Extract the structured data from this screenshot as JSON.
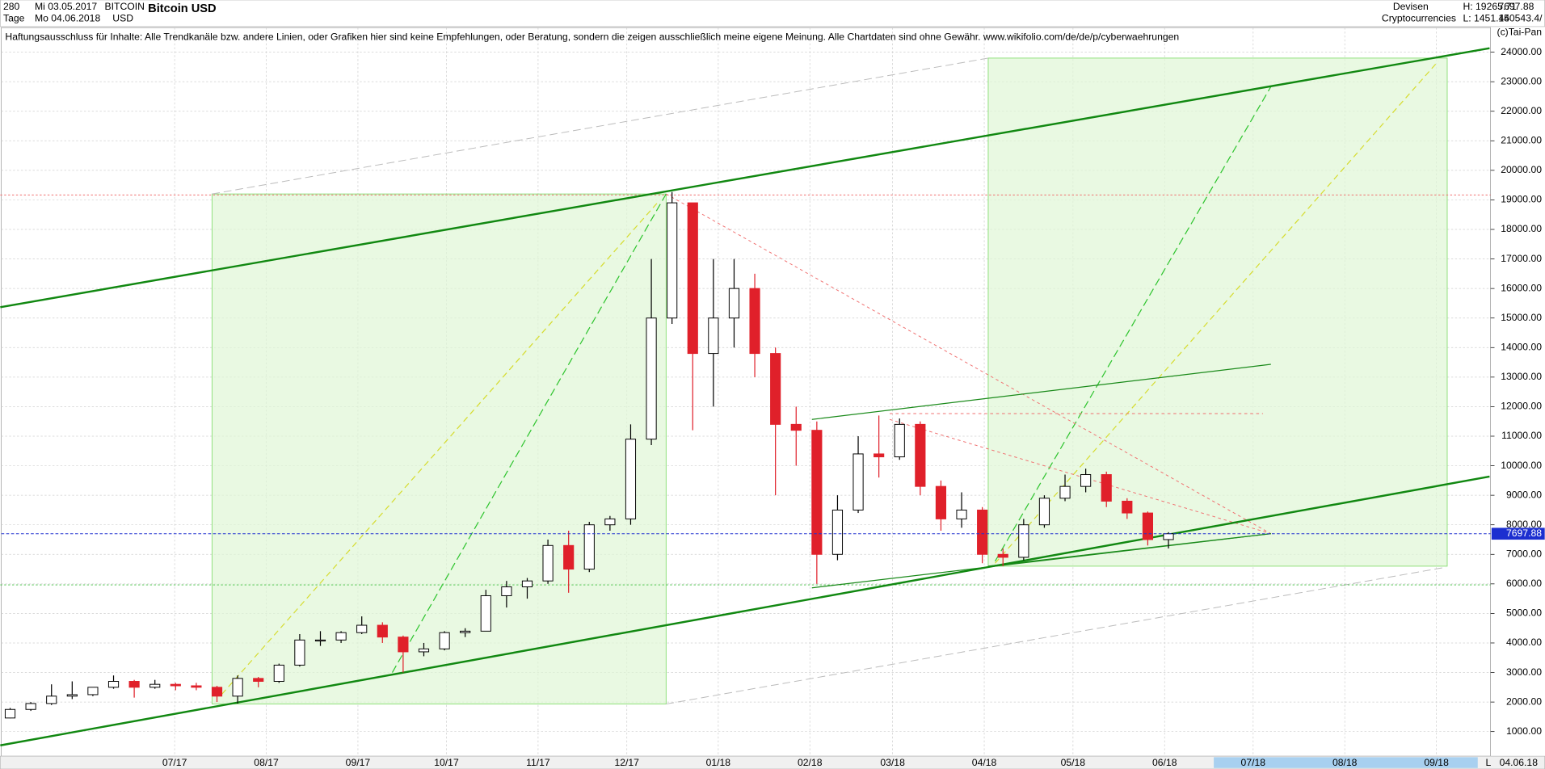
{
  "header": {
    "period": "280",
    "start": "Mi 03.05.2017",
    "unit": "Tage",
    "end": "Mo 04.06.2018",
    "symbol": "BITCOIN",
    "currency": "USD",
    "name": "Bitcoin USD",
    "market": "Devisen",
    "group": "Cryptocurrencies",
    "high": "H: 19265.71",
    "low": "L: 1451.44",
    "last": "7697.88",
    "volume": "150543.4/",
    "disclaimer": "Haftungsausschluss für Inhalte: Alle Trendkanäle bzw. andere Linien, oder Grafiken hier sind keine Empfehlungen, oder Beratung, sondern die zeigen ausschließlich meine eigene Meinung. Alle Chartdaten sind ohne Gewähr.  www.wikifolio.com/de/de/p/cyberwaehrungen",
    "copyright": "(c)Tai-Pan",
    "footer_mode": "L",
    "footer_date": "04.06.18"
  },
  "chart_data": {
    "type": "candlestick",
    "title": "Bitcoin USD",
    "categories": [
      null,
      null,
      null,
      null,
      null,
      null,
      null,
      null,
      null,
      null,
      null,
      null,
      null,
      null,
      null,
      null,
      null,
      null,
      null,
      null,
      null,
      null,
      null,
      null,
      null,
      null,
      null,
      null,
      null,
      null,
      null,
      null,
      null,
      null,
      null,
      null,
      null,
      null,
      null,
      null,
      null,
      null,
      null,
      null,
      null,
      null,
      null,
      null,
      null,
      null,
      null,
      null,
      null,
      null,
      null,
      null,
      null
    ],
    "open": [
      1460,
      1750,
      1950,
      2200,
      2250,
      2500,
      2700,
      2500,
      2600,
      2550,
      2500,
      2200,
      2800,
      2700,
      3250,
      4100,
      4100,
      4350,
      4600,
      4200,
      3700,
      3800,
      4350,
      4400,
      5600,
      5900,
      6100,
      7300,
      6500,
      8000,
      8200,
      10900,
      15000,
      18900,
      13800,
      15000,
      16000,
      13800,
      11400,
      11200,
      7000,
      8500,
      10400,
      10300,
      11400,
      9300,
      8200,
      8500,
      7000,
      6900,
      8000,
      8900,
      9300,
      9700,
      8800,
      8400,
      7500
    ],
    "high": [
      1800,
      2000,
      2600,
      2700,
      2500,
      2900,
      2750,
      2750,
      2650,
      2650,
      2550,
      2900,
      2850,
      3300,
      4300,
      4400,
      4400,
      4900,
      4700,
      4250,
      4000,
      4400,
      4500,
      5800,
      6100,
      6200,
      7500,
      7800,
      8100,
      8300,
      11400,
      17000,
      19265.71,
      18900,
      17000,
      17000,
      16500,
      14000,
      12000,
      11500,
      9000,
      11000,
      11700,
      11600,
      11500,
      9500,
      9100,
      8600,
      7200,
      8200,
      9000,
      9700,
      9900,
      9800,
      8900,
      8450,
      7750
    ],
    "low": [
      1451.44,
      1700,
      1900,
      2100,
      2200,
      2450,
      2150,
      2450,
      2400,
      2400,
      2000,
      1950,
      2500,
      2650,
      3200,
      3900,
      4000,
      4300,
      4000,
      3000,
      3550,
      3750,
      4200,
      4400,
      5200,
      5500,
      6000,
      5700,
      6400,
      7800,
      8000,
      10700,
      14800,
      11200,
      12000,
      14000,
      13000,
      9000,
      10000,
      6000,
      6800,
      8400,
      9600,
      10200,
      9000,
      7800,
      7900,
      6700,
      6600,
      6800,
      7900,
      8800,
      9100,
      8600,
      8200,
      7300,
      7200
    ],
    "close": [
      1750,
      1950,
      2200,
      2250,
      2500,
      2700,
      2500,
      2600,
      2550,
      2500,
      2200,
      2800,
      2700,
      3250,
      4100,
      4100,
      4350,
      4600,
      4200,
      3700,
      3800,
      4350,
      4400,
      5600,
      5900,
      6100,
      7300,
      6500,
      8000,
      8200,
      10900,
      15000,
      18900,
      13800,
      15000,
      16000,
      13800,
      11400,
      11200,
      7000,
      8500,
      10400,
      10300,
      11400,
      9300,
      8200,
      8500,
      7000,
      6900,
      8000,
      8900,
      9300,
      9700,
      8800,
      8400,
      7500,
      7697.88
    ],
    "up_color": "#000000",
    "down_color": "#e0202a",
    "last_price": 7697.88,
    "ylim": [
      700,
      24833
    ],
    "yticks": [
      {
        "value": 1000,
        "label": "1000.00"
      },
      {
        "value": 2000,
        "label": "2000.00"
      },
      {
        "value": 3000,
        "label": "3000.00"
      },
      {
        "value": 4000,
        "label": "4000.00"
      },
      {
        "value": 5000,
        "label": "5000.00"
      },
      {
        "value": 6000,
        "label": "6000.00"
      },
      {
        "value": 7000,
        "label": "7000.00"
      },
      {
        "value": 8000,
        "label": "8000.00"
      },
      {
        "value": 9000,
        "label": "9000.00"
      },
      {
        "value": 10000,
        "label": "10000.00"
      },
      {
        "value": 11000,
        "label": "11000.00"
      },
      {
        "value": 12000,
        "label": "12000.00"
      },
      {
        "value": 13000,
        "label": "13000.00"
      },
      {
        "value": 14000,
        "label": "14000.00"
      },
      {
        "value": 15000,
        "label": "15000.00"
      },
      {
        "value": 16000,
        "label": "16000.00"
      },
      {
        "value": 17000,
        "label": "17000.00"
      },
      {
        "value": 18000,
        "label": "18000.00"
      },
      {
        "value": 19000,
        "label": "19000.00"
      },
      {
        "value": 20000,
        "label": "20000.00"
      },
      {
        "value": 21000,
        "label": "21000.00"
      },
      {
        "value": 22000,
        "label": "22000.00"
      },
      {
        "value": 23000,
        "label": "23000.00"
      },
      {
        "value": 24000,
        "label": "24000.00"
      }
    ],
    "xticks": [
      {
        "value": 8.43,
        "label": "07/17"
      },
      {
        "value": 12.86,
        "label": "08/17"
      },
      {
        "value": 17.29,
        "label": "09/17"
      },
      {
        "value": 21.57,
        "label": "10/17"
      },
      {
        "value": 26,
        "label": "11/17"
      },
      {
        "value": 30.29,
        "label": "12/17"
      },
      {
        "value": 34.71,
        "label": "01/18"
      },
      {
        "value": 39.14,
        "label": "02/18"
      },
      {
        "value": 43.14,
        "label": "03/18"
      },
      {
        "value": 47.57,
        "label": "04/18"
      },
      {
        "value": 51.86,
        "label": "05/18"
      },
      {
        "value": 56.29,
        "label": "06/18"
      },
      {
        "value": 60.57,
        "label": "07/18"
      },
      {
        "value": 65,
        "label": "08/18"
      },
      {
        "value": 69.43,
        "label": "09/18"
      }
    ],
    "grid": true
  }
}
